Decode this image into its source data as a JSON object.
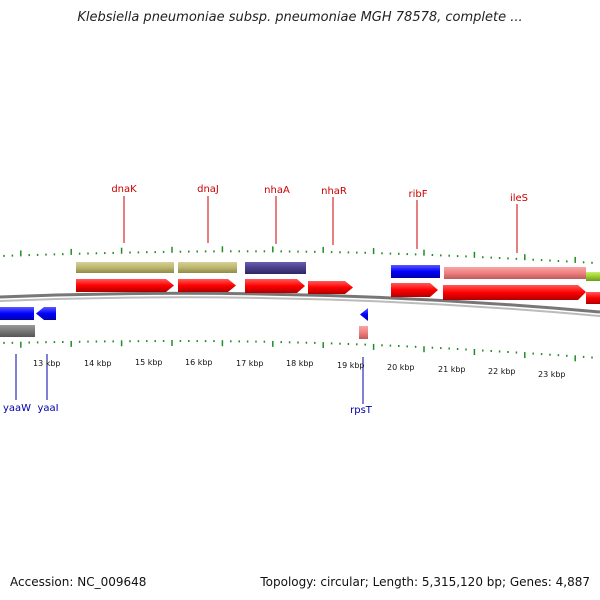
{
  "title": "Klebsiella pneumoniae subsp. pneumoniae MGH 78578, complete ...",
  "footer": {
    "accession": "Accession: NC_009648",
    "summary": "Topology: circular; Length: 5,315,120 bp; Genes: 4,887"
  },
  "colors": {
    "backbone": "#888888",
    "forward_cds": "#ff0000",
    "reverse_cds": "#0000ff",
    "tick": "#228b22",
    "gene_label_top": "#cc0000",
    "gene_label_bottom": "#0000aa",
    "olive_feature": "#bdb76b",
    "navy_feature": "#483d8b",
    "pink_feature": "#f08080",
    "gray_feature": "#777777",
    "lime_feature": "#9acd32"
  },
  "scale_labels": [
    "13 kbp",
    "14 kbp",
    "15 kbp",
    "16 kbp",
    "17 kbp",
    "18 kbp",
    "19 kbp",
    "20 kbp",
    "21 kbp",
    "22 kbp",
    "23 kbp"
  ],
  "top_gene_labels": [
    "dnaK",
    "dnaJ",
    "nhaA",
    "nhaR",
    "ribF",
    "ileS"
  ],
  "bottom_gene_labels": [
    "yaaW",
    "yaaI",
    "rpsT"
  ]
}
